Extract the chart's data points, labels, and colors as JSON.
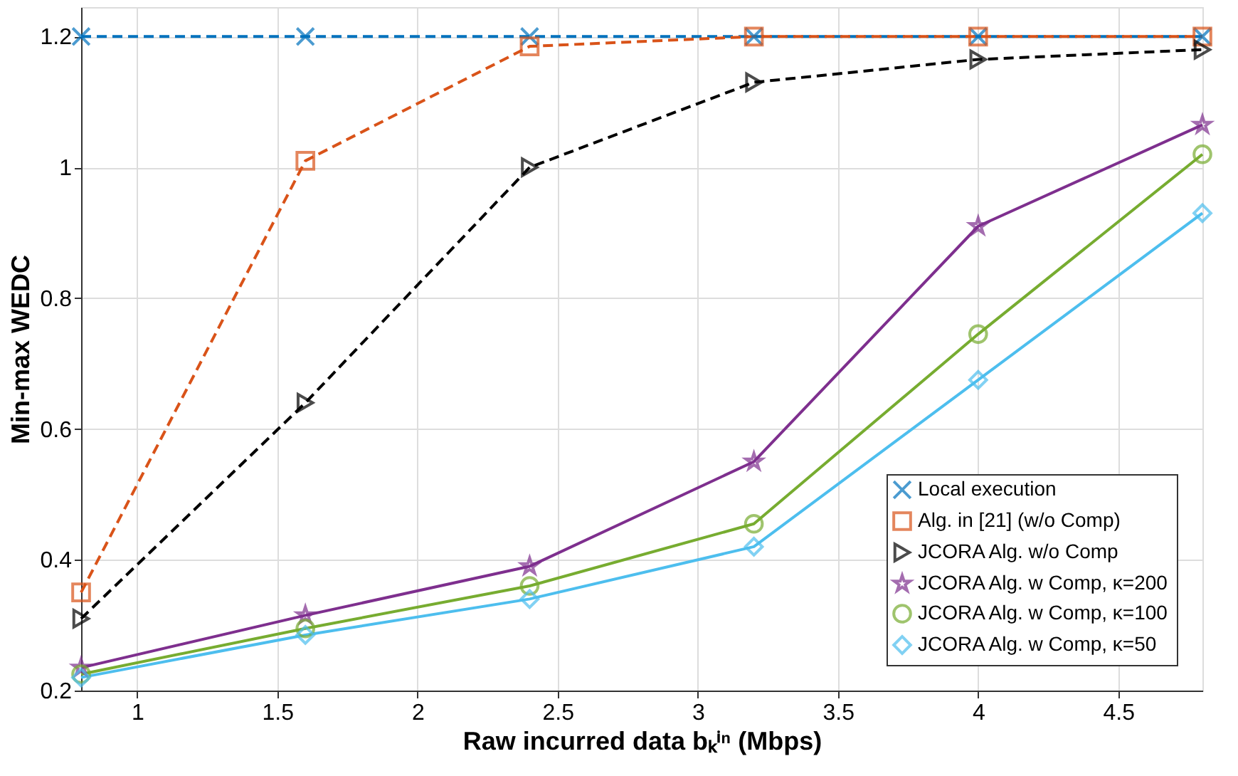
{
  "chart_data": {
    "type": "line",
    "xlabel": "Raw incurred data bₖⁱⁿ (Mbps)",
    "ylabel": "Min-max WEDC",
    "x": [
      0.8,
      1.6,
      2.4,
      3.2,
      4.0,
      4.8
    ],
    "xlim": [
      0.8,
      4.8
    ],
    "xticks": [
      1,
      1.5,
      2,
      2.5,
      3,
      3.5,
      4,
      4.5
    ],
    "ylim": [
      0.2,
      1.245
    ],
    "yticks": [
      0.2,
      0.4,
      0.6,
      0.8,
      1,
      1.2
    ],
    "grid": true,
    "legend": "bottom right",
    "series": [
      {
        "name": "Local execution",
        "color": "#0072bd",
        "marker": "cross",
        "line_style": "dashed",
        "values": [
          1.2,
          1.2,
          1.2,
          1.2,
          1.2,
          1.2
        ]
      },
      {
        "name": "Alg. in [21] (w/o Comp)",
        "color": "#d95319",
        "marker": "square",
        "line_style": "dashed",
        "values": [
          0.35,
          1.01,
          1.185,
          1.2,
          1.2,
          1.2
        ]
      },
      {
        "name": "JCORA Alg. w/o Comp",
        "color": "#000000",
        "marker": "triangle",
        "line_style": "dashed",
        "values": [
          0.31,
          0.64,
          1.0,
          1.13,
          1.165,
          1.18
        ]
      },
      {
        "name": "JCORA Alg. w Comp, κ=200",
        "color": "#7e2f8e",
        "marker": "star",
        "line_style": "solid",
        "values": [
          0.235,
          0.315,
          0.39,
          0.55,
          0.91,
          1.065
        ]
      },
      {
        "name": "JCORA Alg. w Comp, κ=100",
        "color": "#77ac30",
        "marker": "circle",
        "line_style": "solid",
        "values": [
          0.225,
          0.295,
          0.36,
          0.455,
          0.745,
          1.02
        ]
      },
      {
        "name": "JCORA Alg. w Comp, κ=50",
        "color": "#4dbeee",
        "marker": "diamond",
        "line_style": "solid",
        "values": [
          0.22,
          0.285,
          0.34,
          0.42,
          0.675,
          0.93
        ]
      }
    ]
  }
}
